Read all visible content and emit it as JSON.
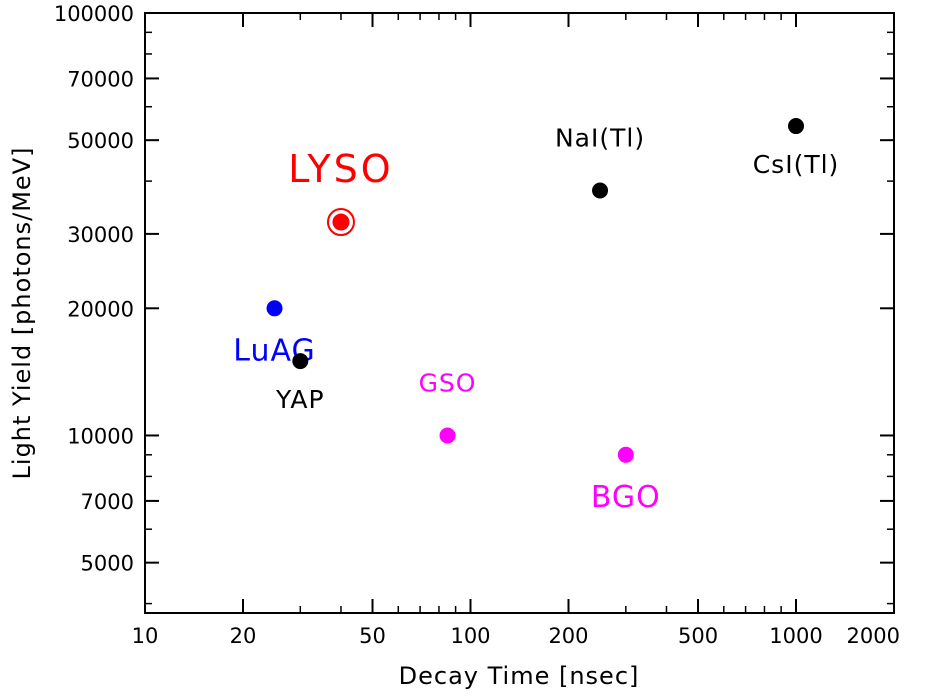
{
  "chart_data": {
    "type": "scatter",
    "title": "",
    "xlabel": "Decay Time [nsec]",
    "ylabel": "Light Yield [photons/MeV]",
    "xscale": "log",
    "yscale": "log",
    "xlim": [
      10,
      2000
    ],
    "ylim": [
      3800,
      100000
    ],
    "x_ticks": [
      {
        "value": 10,
        "label": "10"
      },
      {
        "value": 20,
        "label": "20"
      },
      {
        "value": 50,
        "label": "50"
      },
      {
        "value": 100,
        "label": "100"
      },
      {
        "value": 200,
        "label": "200"
      },
      {
        "value": 500,
        "label": "500"
      },
      {
        "value": 1000,
        "label": "1000"
      },
      {
        "value": 2000,
        "label": "2000"
      }
    ],
    "y_ticks": [
      {
        "value": 5000,
        "label": "5000"
      },
      {
        "value": 7000,
        "label": "7000"
      },
      {
        "value": 10000,
        "label": "10000"
      },
      {
        "value": 20000,
        "label": "20000"
      },
      {
        "value": 30000,
        "label": "30000"
      },
      {
        "value": 50000,
        "label": "50000"
      },
      {
        "value": 70000,
        "label": "70000"
      },
      {
        "value": 100000,
        "label": "100000"
      }
    ],
    "grid": false,
    "legend": "none",
    "points": [
      {
        "label": "LYSO",
        "x": 40,
        "y": 32000,
        "color": "#ff0000",
        "label_size": "large",
        "label_position": "above",
        "highlight": true
      },
      {
        "label": "LuAG",
        "x": 25,
        "y": 20000,
        "color": "#0000ff",
        "label_size": "medium",
        "label_position": "below"
      },
      {
        "label": "YAP",
        "x": 30,
        "y": 15000,
        "color": "#000000",
        "label_size": "small",
        "label_position": "below"
      },
      {
        "label": "GSO",
        "x": 85,
        "y": 10000,
        "color": "#ff00ff",
        "label_size": "small",
        "label_position": "above"
      },
      {
        "label": "BGO",
        "x": 300,
        "y": 9000,
        "color": "#ff00ff",
        "label_size": "medium",
        "label_position": "below"
      },
      {
        "label": "NaI(Tl)",
        "x": 250,
        "y": 38000,
        "color": "#000000",
        "label_size": "small",
        "label_position": "above"
      },
      {
        "label": "CsI(Tl)",
        "x": 1000,
        "y": 54000,
        "color": "#000000",
        "label_size": "small",
        "label_position": "below"
      }
    ]
  }
}
